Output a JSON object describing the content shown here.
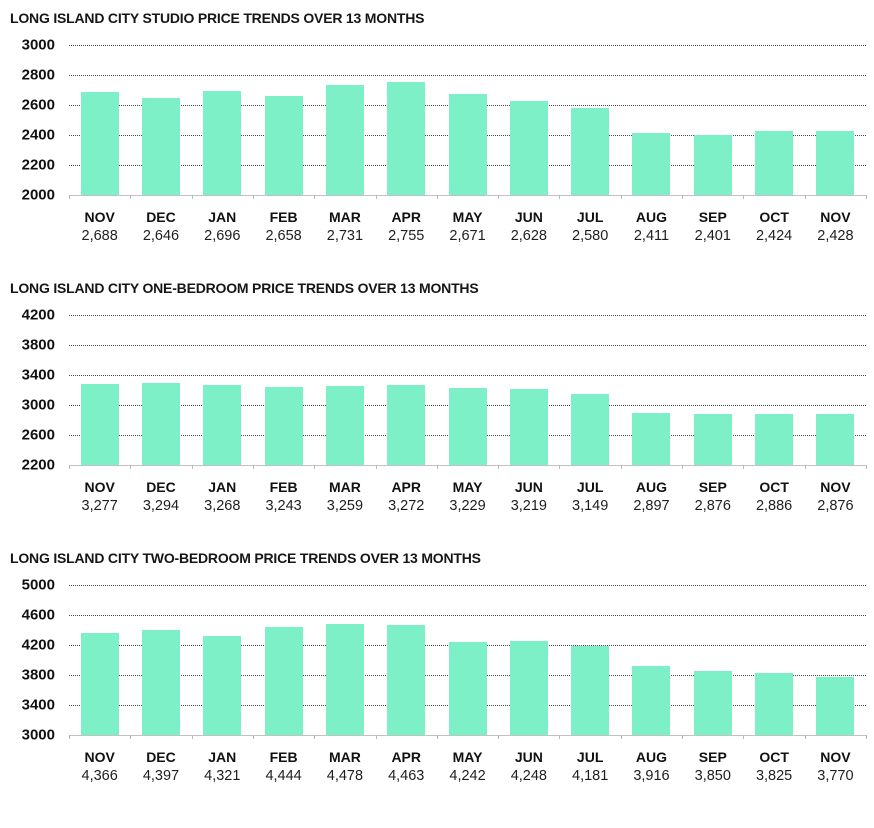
{
  "style": {
    "bar_color": "#7df0c8",
    "gridline_color": "#4d4d4d",
    "axis_color": "#c2c2c2",
    "text_color": "#111111"
  },
  "chart_data": [
    {
      "type": "bar",
      "title": "LONG ISLAND CITY STUDIO PRICE TRENDS OVER 13 MONTHS",
      "categories": [
        "NOV",
        "DEC",
        "JAN",
        "FEB",
        "MAR",
        "APR",
        "MAY",
        "JUN",
        "JUL",
        "AUG",
        "SEP",
        "OCT",
        "NOV"
      ],
      "values": [
        2688,
        2646,
        2696,
        2658,
        2731,
        2755,
        2671,
        2628,
        2580,
        2411,
        2401,
        2424,
        2428
      ],
      "value_labels": [
        "2,688",
        "2,646",
        "2,696",
        "2,658",
        "2,731",
        "2,755",
        "2,671",
        "2,628",
        "2,580",
        "2,411",
        "2,401",
        "2,424",
        "2,428"
      ],
      "yticks": [
        3000,
        2800,
        2600,
        2400,
        2200,
        2000
      ],
      "ylim": [
        2000,
        3000
      ],
      "xlabel": "",
      "ylabel": "",
      "grid": "horizontal-dotted",
      "legend_position": "none"
    },
    {
      "type": "bar",
      "title": "LONG ISLAND CITY ONE-BEDROOM PRICE TRENDS OVER 13 MONTHS",
      "categories": [
        "NOV",
        "DEC",
        "JAN",
        "FEB",
        "MAR",
        "APR",
        "MAY",
        "JUN",
        "JUL",
        "AUG",
        "SEP",
        "OCT",
        "NOV"
      ],
      "values": [
        3277,
        3294,
        3268,
        3243,
        3259,
        3272,
        3229,
        3219,
        3149,
        2897,
        2876,
        2886,
        2876
      ],
      "value_labels": [
        "3,277",
        "3,294",
        "3,268",
        "3,243",
        "3,259",
        "3,272",
        "3,229",
        "3,219",
        "3,149",
        "2,897",
        "2,876",
        "2,886",
        "2,876"
      ],
      "yticks": [
        4200,
        3800,
        3400,
        3000,
        2600,
        2200
      ],
      "ylim": [
        2200,
        4200
      ],
      "xlabel": "",
      "ylabel": "",
      "grid": "horizontal-dotted",
      "legend_position": "none"
    },
    {
      "type": "bar",
      "title": "LONG ISLAND CITY TWO-BEDROOM PRICE TRENDS OVER 13 MONTHS",
      "categories": [
        "NOV",
        "DEC",
        "JAN",
        "FEB",
        "MAR",
        "APR",
        "MAY",
        "JUN",
        "JUL",
        "AUG",
        "SEP",
        "OCT",
        "NOV"
      ],
      "values": [
        4366,
        4397,
        4321,
        4444,
        4478,
        4463,
        4242,
        4248,
        4181,
        3916,
        3850,
        3825,
        3770
      ],
      "value_labels": [
        "4,366",
        "4,397",
        "4,321",
        "4,444",
        "4,478",
        "4,463",
        "4,242",
        "4,248",
        "4,181",
        "3,916",
        "3,850",
        "3,825",
        "3,770"
      ],
      "yticks": [
        5000,
        4600,
        4200,
        3800,
        3400,
        3000
      ],
      "ylim": [
        3000,
        5000
      ],
      "xlabel": "",
      "ylabel": "",
      "grid": "horizontal-dotted",
      "legend_position": "none"
    }
  ]
}
